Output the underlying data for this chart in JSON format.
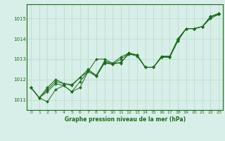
{
  "title": "Graphe pression niveau de la mer (hPa)",
  "background_color": "#d8eee8",
  "line_color": "#1a6b1a",
  "grid_color": "#b8d8cc",
  "xlim": [
    -0.5,
    23.5
  ],
  "ylim": [
    1010.5,
    1015.7
  ],
  "yticks": [
    1011,
    1012,
    1013,
    1014,
    1015
  ],
  "xticks": [
    0,
    1,
    2,
    3,
    4,
    5,
    6,
    7,
    8,
    9,
    10,
    11,
    12,
    13,
    14,
    15,
    16,
    17,
    18,
    19,
    20,
    21,
    22,
    23
  ],
  "series": [
    [
      1011.6,
      1011.1,
      1010.9,
      1011.5,
      1011.7,
      1011.4,
      1011.6,
      1012.4,
      1013.0,
      1013.0,
      1012.8,
      1012.8,
      1013.3,
      1013.2,
      1012.6,
      1012.6,
      1013.1,
      1013.1,
      1013.9,
      1014.5,
      1014.5,
      1014.6,
      1015.1,
      1015.2
    ],
    [
      1011.6,
      1011.1,
      1011.5,
      1011.9,
      1011.8,
      1011.7,
      1012.1,
      1012.5,
      1012.2,
      1012.9,
      1012.8,
      1013.1,
      1013.3,
      1013.2,
      1012.6,
      1012.6,
      1013.15,
      1013.15,
      1014.0,
      1014.5,
      1014.5,
      1014.6,
      1015.05,
      1015.25
    ],
    [
      1011.6,
      1011.1,
      1011.4,
      1011.8,
      1011.7,
      1011.4,
      1011.9,
      1012.4,
      1012.2,
      1012.85,
      1012.75,
      1012.85,
      1013.25,
      1013.15,
      1012.6,
      1012.6,
      1013.1,
      1013.1,
      1013.95,
      1014.5,
      1014.5,
      1014.6,
      1015.0,
      1015.2
    ],
    [
      1011.6,
      1011.1,
      1011.6,
      1012.0,
      1011.8,
      1011.75,
      1012.1,
      1012.4,
      1012.15,
      1012.8,
      1012.75,
      1013.0,
      1013.28,
      1013.2,
      1012.6,
      1012.6,
      1013.1,
      1013.1,
      1013.9,
      1014.5,
      1014.5,
      1014.6,
      1015.1,
      1015.25
    ]
  ]
}
